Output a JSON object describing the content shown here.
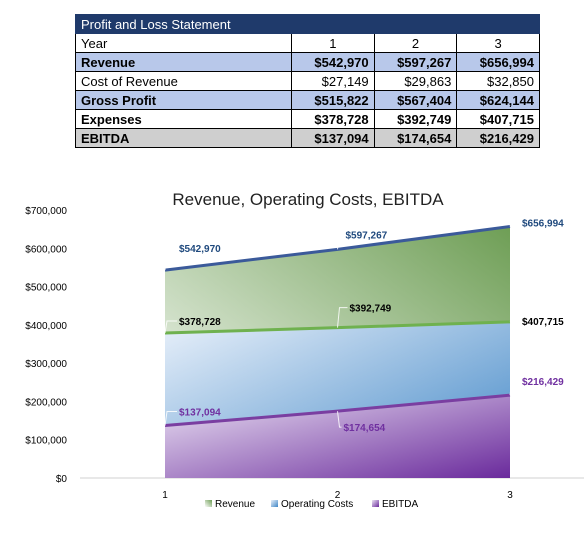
{
  "table": {
    "title": "Profit and Loss Statement",
    "header": {
      "label": "Year",
      "years": [
        "1",
        "2",
        "3"
      ]
    },
    "rows": [
      {
        "label": "Revenue",
        "values": [
          "$542,970",
          "$597,267",
          "$656,994"
        ],
        "style": "hl"
      },
      {
        "label": "Cost of Revenue",
        "values": [
          "$27,149",
          "$29,863",
          "$32,850"
        ],
        "style": "plain"
      },
      {
        "label": "Gross Profit",
        "values": [
          "$515,822",
          "$567,404",
          "$624,144"
        ],
        "style": "hl"
      },
      {
        "label": "Expenses",
        "values": [
          "$378,728",
          "$392,749",
          "$407,715"
        ],
        "style": "plain-bold"
      },
      {
        "label": "EBITDA",
        "values": [
          "$137,094",
          "$174,654",
          "$216,429"
        ],
        "style": "grey"
      }
    ]
  },
  "chart_data": {
    "type": "area",
    "title": "Revenue, Operating Costs, EBITDA",
    "categories": [
      "1",
      "2",
      "3"
    ],
    "ylim": [
      0,
      700000
    ],
    "yticks": [
      "$0",
      "$100,000",
      "$200,000",
      "$300,000",
      "$400,000",
      "$500,000",
      "$600,000",
      "$700,000"
    ],
    "legend_position": "bottom",
    "series": [
      {
        "name": "Revenue",
        "values": [
          542970,
          597267,
          656994
        ],
        "labels": [
          "$542,970",
          "$597,267",
          "$656,994"
        ],
        "color": "#3b5a9a",
        "fill": "#8db27a",
        "label_color": "#1f497d"
      },
      {
        "name": "Operating Costs",
        "values": [
          378728,
          392749,
          407715
        ],
        "labels": [
          "$378,728",
          "$392,749",
          "$407,715"
        ],
        "color": "#6fb14f",
        "fill": "#4a90cc",
        "label_color": "#000000"
      },
      {
        "name": "EBITDA",
        "values": [
          137094,
          174654,
          216429
        ],
        "labels": [
          "$137,094",
          "$174,654",
          "$216,429"
        ],
        "color": "#7a3ea1",
        "fill": "#7030a0",
        "label_color": "#7030a0"
      }
    ]
  }
}
